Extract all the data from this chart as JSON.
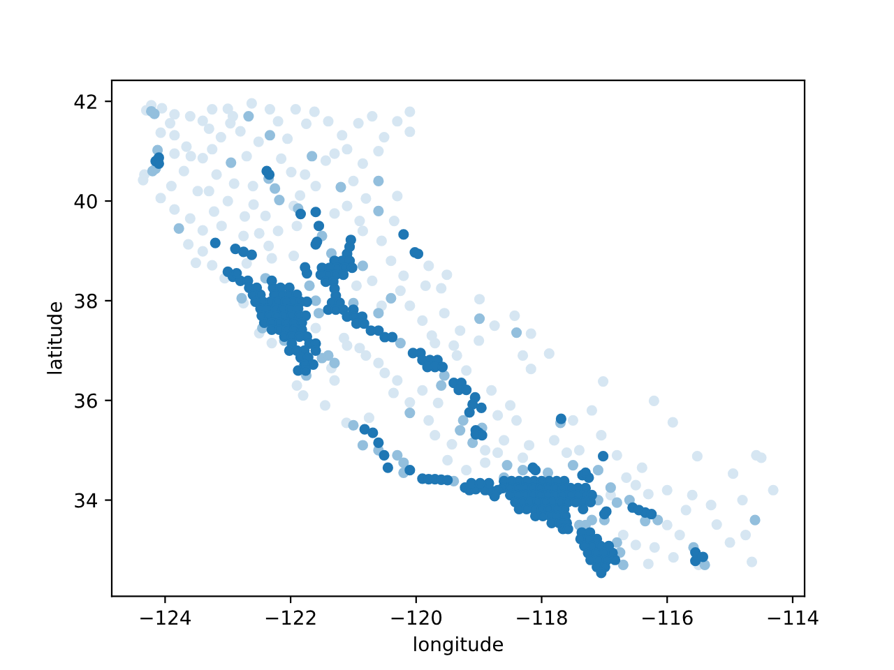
{
  "chart_data": {
    "type": "scatter",
    "xlabel": "longitude",
    "ylabel": "latitude",
    "xlim": [
      -124.85,
      -113.81
    ],
    "ylim": [
      32.07,
      42.42
    ],
    "xticks": [
      {
        "value": -124,
        "label": "−124"
      },
      {
        "value": -122,
        "label": "−122"
      },
      {
        "value": -120,
        "label": "−120"
      },
      {
        "value": -118,
        "label": "−118"
      },
      {
        "value": -116,
        "label": "−116"
      },
      {
        "value": -114,
        "label": "−114"
      }
    ],
    "yticks": [
      34,
      36,
      38,
      40,
      42
    ],
    "marker": "circle",
    "series": [
      {
        "color": "#d6e6f2",
        "x": [
          -124.22,
          -124.3,
          -124.05,
          -123.85,
          -123.92,
          -124.07,
          -123.85,
          -123.6,
          -123.4,
          -123.25,
          -122.92,
          -122.62,
          -122.33,
          -121.92,
          -121.62,
          -121.18,
          -120.92,
          -120.51,
          -120.1,
          -120.1,
          -121.1,
          -122.51,
          -123.11,
          -122.96,
          -123.25,
          -123.66,
          -123.4,
          -123.59,
          -123.18,
          -123.48,
          -123.85,
          -124.07,
          -123.22,
          -122.73,
          -122.59,
          -121.85,
          -121.77,
          -121.44,
          -121.99,
          -120.8,
          -124.33,
          -124.35,
          -123.9,
          -123.51,
          -123.25,
          -123.4,
          -123.63,
          -123.4,
          -122.5,
          -122.35,
          -122.7,
          -123.05,
          -120.9,
          -120.55,
          -120.4,
          -120.2,
          -119.8,
          -119.51,
          -119.55,
          -119.3,
          -118.99,
          -118.43,
          -118.17,
          -117.88,
          -118.17,
          -117.02,
          -116.21,
          -115.91,
          -115.52,
          -114.95,
          -114.31,
          -114.65,
          -115.21,
          -115.0,
          -114.75,
          -121.9,
          -121.8,
          -121.45,
          -121.11,
          -120.75,
          -120.36,
          -120.1,
          -119.8,
          -119.7,
          -119.43,
          -117.4,
          -117.05,
          -116.8,
          -116.5,
          -116.3,
          -115.7,
          -116.0,
          -115.8,
          -115.9,
          -116.3,
          -116.5,
          -116.7,
          -116.2,
          -120.9,
          -121.15,
          -120.6,
          -121.35,
          -122.75,
          -122.5,
          -122.3,
          -121.3,
          -118.9,
          -118.6,
          -118.4,
          -118.5,
          -118.8,
          -118.7,
          -119.5,
          -119.2,
          -118.2,
          -117.8,
          -117.6,
          -116.4,
          -116.9,
          -119.9,
          -119.7,
          -119.35,
          -119.0,
          -119.2,
          -120.1,
          -119.6,
          -120.7,
          -121.9,
          -122.2,
          -121.3,
          -121.0,
          -120.3,
          -115.5,
          -114.5,
          -114.58
        ],
        "values": [
          41.92,
          41.82,
          41.86,
          41.74,
          41.56,
          41.37,
          41.32,
          41.7,
          41.61,
          41.84,
          41.7,
          41.96,
          41.84,
          41.84,
          41.79,
          41.32,
          41.56,
          41.28,
          41.79,
          41.39,
          41.04,
          41.19,
          41.28,
          41.56,
          41.04,
          41.09,
          40.86,
          40.9,
          40.53,
          40.2,
          39.83,
          40.06,
          39.79,
          39.69,
          39.93,
          40.11,
          40.53,
          40.81,
          40.58,
          40.05,
          40.53,
          40.42,
          40.3,
          38.76,
          38.71,
          38.99,
          39.13,
          39.41,
          39.35,
          39.1,
          38.75,
          38.45,
          39.6,
          39.2,
          38.8,
          38.5,
          38.7,
          38.52,
          37.75,
          37.4,
          38.03,
          37.7,
          37.34,
          36.94,
          36.63,
          36.38,
          35.99,
          35.56,
          34.88,
          34.53,
          34.2,
          32.76,
          33.51,
          33.15,
          33.3,
          36.3,
          36.1,
          35.9,
          35.55,
          35.65,
          36.15,
          35.96,
          35.6,
          35.3,
          35.12,
          35.0,
          35.3,
          34.9,
          34.3,
          34.12,
          33.8,
          33.5,
          33.3,
          32.85,
          32.72,
          33.1,
          33.3,
          33.05,
          37.05,
          37.25,
          36.75,
          36.65,
          37.95,
          37.35,
          37.15,
          36.4,
          35.0,
          35.2,
          35.6,
          35.9,
          36.2,
          35.7,
          34.8,
          34.6,
          35.1,
          35.2,
          34.95,
          34.65,
          34.1,
          37.6,
          37.15,
          36.9,
          37.2,
          36.6,
          37.9,
          38.25,
          38.4,
          39.5,
          39.4,
          39.75,
          40.4,
          40.1,
          32.7,
          34.85,
          34.9
        ]
      },
      {
        "color": "#d6e6f2",
        "x": [
          -123.3,
          -123.0,
          -122.8,
          -122.2,
          -122.05,
          -121.75,
          -121.4,
          -120.7,
          -120.3,
          -120.6,
          -120.85,
          -121.3,
          -122.15,
          -122.7,
          -122.6,
          -123.7,
          -123.85,
          -123.3,
          -123.0,
          -122.9,
          -121.6,
          -121.95,
          -122.4,
          -123.6,
          -123.1,
          -122.75,
          -121.1,
          -120.85,
          -120.35,
          -122.3,
          -121.95,
          -120.95,
          -120.55,
          -120.25,
          -119.85,
          -119.75,
          -119.4,
          -118.75,
          -118.3,
          -117.5,
          -117.2,
          -116.0,
          -115.6,
          -116.65,
          -115.3,
          -114.8,
          -121.6,
          -121.1,
          -120.8,
          -120.5,
          -120.3,
          -119.9,
          -119.65,
          -118.7,
          -118.9,
          -118.3
        ],
        "values": [
          41.45,
          41.85,
          41.4,
          41.6,
          41.25,
          41.55,
          41.6,
          41.7,
          41.6,
          41.0,
          40.75,
          40.95,
          40.85,
          40.9,
          40.3,
          40.6,
          40.95,
          40.2,
          40.0,
          40.35,
          40.3,
          39.9,
          39.7,
          39.65,
          39.5,
          39.3,
          39.9,
          39.4,
          39.6,
          38.85,
          38.9,
          38.3,
          37.9,
          38.2,
          38.3,
          37.3,
          37.1,
          37.5,
          36.9,
          35.6,
          35.8,
          34.2,
          34.1,
          34.45,
          33.9,
          34.0,
          37.45,
          37.1,
          36.9,
          36.55,
          36.4,
          36.2,
          35.95,
          34.95,
          34.75,
          34.85
        ]
      },
      {
        "color": "#93bfdd",
        "x": [
          -124.17,
          -124.12,
          -124.2,
          -124.15,
          -122.95,
          -122.67,
          -122.33,
          -121.66,
          -122.25,
          -122.18,
          -121.2,
          -120.6,
          -120.6,
          -123.78,
          -121.5,
          -121.35,
          -120.85,
          -120.4,
          -120.6,
          -120.25,
          -119.55,
          -119.6,
          -119.25,
          -119.3,
          -119.1,
          -118.95,
          -121.0,
          -120.85,
          -120.1,
          -121.3,
          -121.5,
          -121.4,
          -121.75,
          -122.45,
          -122.1,
          -122.78,
          -122.4,
          -121.7,
          -121.6,
          -121.55,
          -121.0,
          -118.99,
          -118.4,
          -118.55,
          -118.3,
          -117.9,
          -117.5,
          -117.1,
          -116.9,
          -117.1,
          -117.0,
          -117.2,
          -117.3,
          -116.8,
          -116.6,
          -116.15,
          -116.35,
          -116.75,
          -116.8,
          -116.7,
          -117.4,
          -115.58,
          -115.4,
          -114.6,
          -117.7,
          -118.6,
          -119.4,
          -120.2,
          -120.3,
          -120.6,
          -120.2,
          -124.22,
          -122.35,
          -121.88
        ],
        "values": [
          41.75,
          41.02,
          40.6,
          40.65,
          40.77,
          41.7,
          41.32,
          40.9,
          40.25,
          40.02,
          40.28,
          40.4,
          39.8,
          39.45,
          39.3,
          38.95,
          38.7,
          38.05,
          37.75,
          37.15,
          36.5,
          36.3,
          35.6,
          35.4,
          35.15,
          35.45,
          35.5,
          35.1,
          35.75,
          36.75,
          36.85,
          36.9,
          36.5,
          37.45,
          37.2,
          38.05,
          38.45,
          38.3,
          38.0,
          37.75,
          37.95,
          37.64,
          37.36,
          34.7,
          34.6,
          34.55,
          34.7,
          34.6,
          34.25,
          34.0,
          33.6,
          33.6,
          33.5,
          33.95,
          34.0,
          33.6,
          33.58,
          32.95,
          33.15,
          32.7,
          33.5,
          33.05,
          32.7,
          33.6,
          35.55,
          34.45,
          34.38,
          34.55,
          34.9,
          35.0,
          34.75,
          41.8,
          40.45,
          39.85
        ]
      },
      {
        "color": "#1f77b4",
        "x": [
          -124.15,
          -124.1,
          -124.1,
          -122.38,
          -122.34,
          -121.84,
          -121.6,
          -121.55,
          -121.6,
          -121.58,
          -123.2,
          -122.88,
          -122.75,
          -122.62,
          -119.97,
          -120.02,
          -120.2,
          -123.0,
          -122.92,
          -121.1,
          -121.06,
          -121.04,
          -121.3,
          -121.18,
          -121.06,
          -121.5,
          -121.38,
          -121.26,
          -121.14,
          -121.02,
          -121.52,
          -121.4,
          -121.28,
          -121.16,
          -121.44,
          -121.32,
          -121.74,
          -121.77,
          -121.3,
          -121.28,
          -121.34,
          -121.22,
          -121.4,
          -121.28,
          -121.16,
          -121.0,
          -121.1,
          -120.98,
          -120.86,
          -120.95,
          -120.83,
          -120.72,
          -120.6,
          -120.5,
          -120.38
        ],
        "values": [
          40.8,
          40.75,
          40.87,
          40.6,
          40.53,
          39.74,
          39.78,
          39.5,
          39.13,
          39.18,
          39.16,
          39.04,
          38.98,
          38.92,
          38.94,
          38.97,
          39.33,
          38.58,
          38.48,
          38.94,
          39.08,
          39.22,
          38.8,
          38.8,
          38.8,
          38.66,
          38.66,
          38.66,
          38.66,
          38.66,
          38.52,
          38.52,
          38.52,
          38.52,
          38.38,
          38.38,
          38.55,
          38.67,
          38.24,
          38.1,
          37.96,
          37.96,
          37.82,
          37.82,
          37.82,
          37.82,
          37.68,
          37.68,
          37.68,
          37.54,
          37.54,
          37.4,
          37.4,
          37.27,
          37.27
        ]
      },
      {
        "color": "#1f77b4",
        "x": [
          -122.8,
          -122.68,
          -122.3,
          -122.66,
          -122.54,
          -122.28,
          -122.16,
          -122.02,
          -122.6,
          -122.48,
          -122.26,
          -122.14,
          -122.02,
          -121.9,
          -122.56,
          -122.44,
          -122.32,
          -122.2,
          -122.08,
          -121.96,
          -121.84,
          -121.74,
          -122.48,
          -122.36,
          -122.24,
          -122.12,
          -122.0,
          -121.88,
          -122.46,
          -122.34,
          -122.22,
          -122.1,
          -121.98,
          -121.86,
          -121.76,
          -122.42,
          -122.3,
          -122.18,
          -122.06,
          -121.94,
          -121.82,
          -122.3,
          -122.18,
          -122.06,
          -121.94,
          -121.82,
          -122.1,
          -121.98,
          -121.86,
          -121.74,
          -121.98,
          -121.7,
          -121.6,
          -122.02,
          -121.9,
          -121.78,
          -121.6,
          -121.84,
          -121.72,
          -121.78,
          -121.64,
          -121.88,
          -121.76,
          -122.86
        ],
        "values": [
          38.4,
          38.4,
          38.4,
          38.26,
          38.26,
          38.26,
          38.26,
          38.26,
          38.12,
          38.12,
          38.12,
          38.12,
          38.12,
          38.12,
          37.98,
          37.98,
          37.98,
          37.98,
          37.98,
          37.98,
          37.98,
          37.98,
          37.84,
          37.84,
          37.84,
          37.84,
          37.84,
          37.84,
          37.7,
          37.7,
          37.7,
          37.7,
          37.7,
          37.7,
          37.7,
          37.56,
          37.56,
          37.56,
          37.56,
          37.56,
          37.56,
          37.42,
          37.42,
          37.42,
          37.42,
          37.42,
          37.28,
          37.28,
          37.28,
          37.28,
          37.14,
          37.14,
          37.14,
          37.0,
          37.0,
          37.0,
          37.0,
          36.86,
          36.86,
          36.72,
          36.72,
          36.6,
          36.6,
          38.55
        ]
      },
      {
        "color": "#1f77b4",
        "x": [
          -118.6,
          -118.48,
          -118.36,
          -118.24,
          -118.12,
          -118.0,
          -117.88,
          -117.76,
          -117.64,
          -118.62,
          -118.5,
          -118.38,
          -118.26,
          -118.14,
          -118.02,
          -117.9,
          -117.78,
          -117.66,
          -117.54,
          -117.42,
          -117.3,
          -118.5,
          -118.38,
          -118.26,
          -118.14,
          -118.02,
          -117.9,
          -117.78,
          -117.66,
          -117.54,
          -117.42,
          -117.3,
          -117.2,
          -118.42,
          -118.3,
          -118.18,
          -118.06,
          -117.94,
          -117.82,
          -117.7,
          -117.58,
          -117.46,
          -117.34,
          -117.22,
          -118.36,
          -118.24,
          -118.12,
          -118.0,
          -117.88,
          -117.76,
          -117.64,
          -117.34,
          -118.1,
          -117.98,
          -117.86,
          -117.74,
          -117.62,
          -117.84,
          -117.72,
          -117.6,
          -117.66,
          -117.58
        ],
        "values": [
          34.38,
          34.38,
          34.38,
          34.38,
          34.38,
          34.38,
          34.38,
          34.38,
          34.38,
          34.24,
          34.24,
          34.24,
          34.24,
          34.24,
          34.24,
          34.24,
          34.24,
          34.24,
          34.24,
          34.24,
          34.24,
          34.1,
          34.1,
          34.1,
          34.1,
          34.1,
          34.1,
          34.1,
          34.1,
          34.1,
          34.1,
          34.1,
          34.1,
          33.96,
          33.96,
          33.96,
          33.96,
          33.96,
          33.96,
          33.96,
          33.96,
          33.96,
          33.96,
          33.96,
          33.82,
          33.82,
          33.82,
          33.82,
          33.82,
          33.82,
          33.82,
          33.82,
          33.68,
          33.68,
          33.68,
          33.68,
          33.68,
          33.54,
          33.54,
          33.54,
          33.42,
          33.42
        ]
      },
      {
        "color": "#1f77b4",
        "x": [
          -120.05,
          -119.93,
          -119.9,
          -119.78,
          -119.66,
          -119.82,
          -119.7,
          -119.58,
          -119.4,
          -119.28,
          -119.32,
          -119.2,
          -119.06,
          -119.1,
          -118.96,
          -119.15,
          -119.05,
          -119.0,
          -118.95,
          -119.05,
          -120.82,
          -120.69,
          -120.6,
          -120.51,
          -120.45,
          -120.1,
          -119.9,
          -119.8,
          -119.7,
          -119.6,
          -119.5,
          -119.22,
          -119.15,
          -119.05,
          -118.9,
          -118.8,
          -118.7,
          -119.12,
          -118.98,
          -118.84,
          -118.75,
          -117.35,
          -117.25,
          -117.3,
          -118.14,
          -118.1,
          -117.69,
          -117.02,
          -116.97,
          -117.0,
          -116.55,
          -116.45,
          -116.35,
          -116.25,
          -115.55,
          -115.55,
          -115.43,
          -117.36,
          -117.23,
          -117.38,
          -117.25,
          -117.12,
          -117.32,
          -117.19,
          -117.06,
          -116.93,
          -117.26,
          -117.13,
          -117.0,
          -116.87,
          -117.22,
          -117.09,
          -116.96,
          -116.83,
          -117.12,
          -116.99,
          -117.05
        ],
        "values": [
          36.95,
          36.95,
          36.81,
          36.81,
          36.81,
          36.67,
          36.67,
          36.67,
          36.35,
          36.35,
          36.21,
          36.21,
          36.06,
          35.92,
          35.85,
          35.76,
          35.4,
          35.35,
          35.3,
          35.32,
          35.42,
          35.35,
          35.15,
          34.9,
          34.65,
          34.6,
          34.43,
          34.42,
          34.42,
          34.41,
          34.4,
          34.25,
          34.2,
          34.22,
          34.2,
          34.18,
          34.2,
          34.34,
          34.34,
          34.34,
          34.08,
          34.5,
          34.45,
          34.55,
          34.65,
          34.6,
          35.63,
          34.88,
          33.77,
          33.72,
          33.85,
          33.8,
          33.75,
          33.72,
          32.78,
          32.95,
          32.86,
          33.35,
          33.35,
          33.22,
          33.22,
          33.22,
          33.08,
          33.08,
          33.08,
          33.08,
          32.94,
          32.94,
          32.94,
          32.94,
          32.8,
          32.8,
          32.8,
          32.8,
          32.66,
          32.66,
          32.54
        ]
      }
    ]
  }
}
